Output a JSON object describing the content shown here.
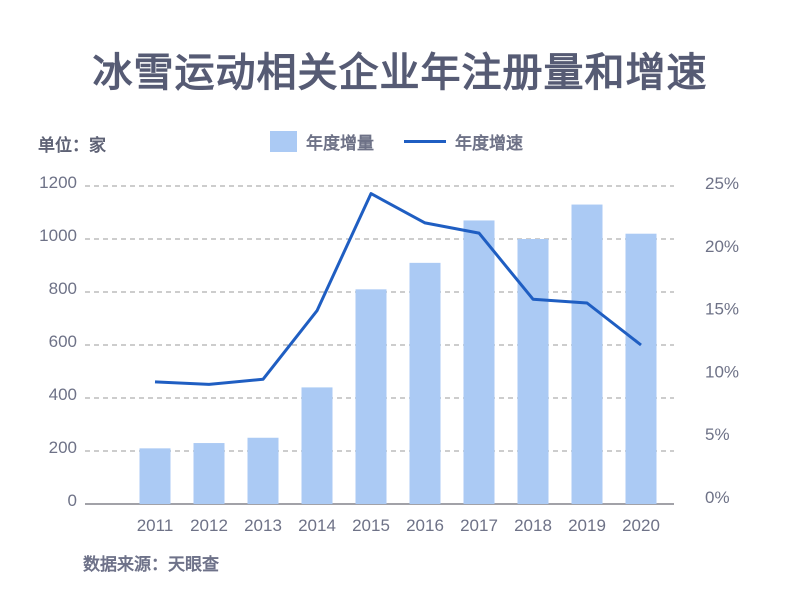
{
  "title": "冰雪运动相关企业年注册量和增速",
  "unit_label": "单位：家",
  "legend": {
    "bar_label": "年度增量",
    "line_label": "年度增速"
  },
  "footer": {
    "source_label": "数据来源：天眼查"
  },
  "colors": {
    "background": "#FFFFFF",
    "title_text": "#565B74",
    "bar_fill": "#ABCAF4",
    "line_stroke": "#1F5EC2",
    "gridline": "#9B9B9B",
    "axis_baseline": "#84848C",
    "tick_text": "#6E7287",
    "muted_text": "#6E7289"
  },
  "chart_data": {
    "type": "bar",
    "subtype": "combo-bar-line-dual-axis",
    "title": "冰雪运动相关企业年注册量和增速",
    "categories": [
      "2011",
      "2012",
      "2013",
      "2014",
      "2015",
      "2016",
      "2017",
      "2018",
      "2019",
      "2020"
    ],
    "series": [
      {
        "name": "年度增量",
        "type": "bar",
        "axis": "left",
        "unit": "家",
        "values": [
          210,
          230,
          250,
          440,
          810,
          910,
          1070,
          1000,
          1130,
          1020
        ]
      },
      {
        "name": "年度增速",
        "type": "line",
        "axis": "right",
        "unit": "%",
        "values": [
          9.6,
          9.4,
          9.8,
          15.2,
          24.4,
          22.1,
          21.3,
          16.1,
          15.8,
          12.5
        ]
      }
    ],
    "left_axis": {
      "label": "单位：家",
      "min": 0,
      "max": 1200,
      "tick_values": [
        0,
        200,
        400,
        600,
        800,
        1000,
        1200
      ]
    },
    "right_axis": {
      "min": 0,
      "max": 25,
      "tick_labels": [
        "0%",
        "5%",
        "10%",
        "15%",
        "20%",
        "25%"
      ],
      "tick_values": [
        0,
        5,
        10,
        15,
        20,
        25
      ]
    },
    "grid": "horizontal-dashed",
    "legend_position": "top",
    "source": "数据来源：天眼查"
  }
}
